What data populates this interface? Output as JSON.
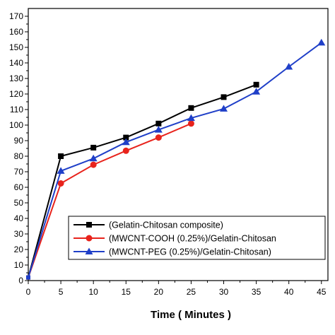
{
  "chart_data": {
    "type": "line",
    "xlabel": "Time ( Minutes )",
    "ylabel": "",
    "xlim": [
      0,
      46
    ],
    "ylim": [
      0,
      175
    ],
    "xticks": [
      0,
      5,
      10,
      15,
      20,
      25,
      30,
      35,
      40,
      45
    ],
    "yticks": [
      0,
      10,
      20,
      30,
      40,
      50,
      60,
      70,
      80,
      90,
      100,
      110,
      120,
      130,
      140,
      150,
      160,
      170
    ],
    "grid": false,
    "legend_position": "bottom-right",
    "series": [
      {
        "name": "(Gelatin-Chitosan composite)",
        "color": "#000000",
        "marker": "square",
        "x": [
          0,
          5,
          10,
          15,
          20,
          25,
          30,
          35
        ],
        "y": [
          2,
          80,
          85.5,
          92,
          101,
          111,
          118,
          126
        ]
      },
      {
        "name": "(MWCNT-COOH (0.25%)/Gelatin-Chitosan",
        "color": "#e8231c",
        "marker": "circle",
        "x": [
          0,
          5,
          10,
          15,
          20,
          25
        ],
        "y": [
          2,
          62.5,
          74.5,
          83.5,
          92,
          101
        ]
      },
      {
        "name": "(MWCNT-PEG (0.25%)/Gelatin-Chitosan)",
        "color": "#1f3fc8",
        "marker": "triangle",
        "x": [
          0,
          5,
          10,
          15,
          20,
          25,
          30,
          35,
          40,
          45
        ],
        "y": [
          2,
          70.5,
          78.5,
          89,
          97,
          104.5,
          110.5,
          121.5,
          137.5,
          153
        ]
      }
    ]
  }
}
